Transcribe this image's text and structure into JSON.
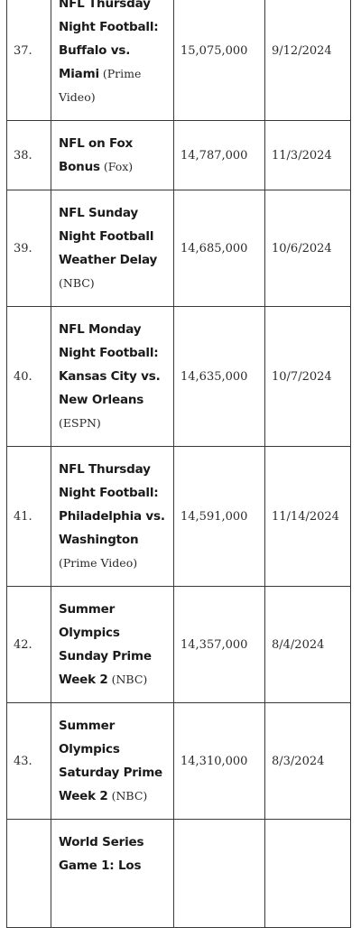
{
  "rows": [
    {
      "rank": "37.",
      "show": "NFL Thursday Night Football: Buffalo vs. Miami",
      "network": "(Prime Video)",
      "viewers": "15,075,000",
      "date": "9/12/2024"
    },
    {
      "rank": "38.",
      "show": "NFL on Fox Bonus",
      "network": "(Fox)",
      "viewers": "14,787,000",
      "date": "11/3/2024"
    },
    {
      "rank": "39.",
      "show": "NFL Sunday Night Football Weather Delay",
      "network": "(NBC)",
      "viewers": "14,685,000",
      "date": "10/6/2024"
    },
    {
      "rank": "40.",
      "show": "NFL Monday Night Football: Kansas City vs. New Orleans",
      "network": "(ESPN)",
      "viewers": "14,635,000",
      "date": "10/7/2024"
    },
    {
      "rank": "41.",
      "show": "NFL Thursday Night Football: Philadelphia vs. Washington",
      "network": "(Prime Video)",
      "viewers": "14,591,000",
      "date": "11/14/2024"
    },
    {
      "rank": "42.",
      "show": "Summer Olympics Sunday Prime Week 2",
      "network": "(NBC)",
      "viewers": "14,357,000",
      "date": "8/4/2024"
    },
    {
      "rank": "43.",
      "show": "Summer Olympics Saturday Prime Week 2",
      "network": "(NBC)",
      "viewers": "14,310,000",
      "date": "8/3/2024"
    },
    {
      "rank": "",
      "show": "World Series Game 1: Los",
      "network": "",
      "viewers": "",
      "date": ""
    }
  ]
}
